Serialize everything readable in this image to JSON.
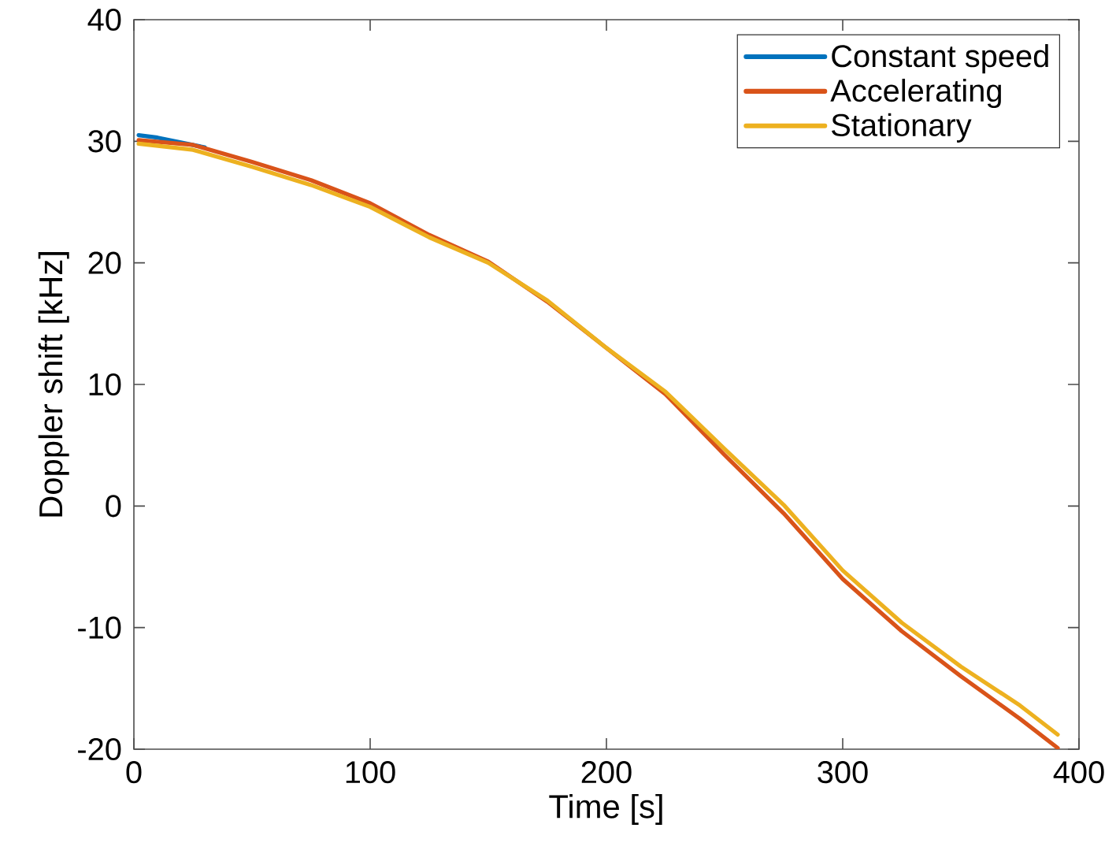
{
  "chart_data": {
    "type": "line",
    "xlabel": "Time [s]",
    "ylabel": "Doppler shift [kHz]",
    "xlim": [
      0,
      400
    ],
    "ylim": [
      -20,
      40
    ],
    "xticks": [
      0,
      100,
      200,
      300,
      400
    ],
    "yticks": [
      -20,
      -10,
      0,
      10,
      20,
      30,
      40
    ],
    "legend": "top right",
    "series": [
      {
        "name": "Constant speed",
        "color": "#0072bd",
        "x": [
          2,
          10,
          20,
          30
        ],
        "values": [
          30.5,
          30.3,
          29.9,
          29.5
        ]
      },
      {
        "name": "Accelerating",
        "color": "#d95319",
        "x": [
          2,
          25,
          50,
          75,
          100,
          125,
          150,
          175,
          200,
          225,
          250,
          275,
          300,
          325,
          350,
          375,
          391
        ],
        "values": [
          30.1,
          29.7,
          28.3,
          26.8,
          24.9,
          22.3,
          20.1,
          16.8,
          13.0,
          9.2,
          4.2,
          -0.6,
          -6.0,
          -10.3,
          -14.0,
          -17.5,
          -19.9
        ]
      },
      {
        "name": "Stationary",
        "color": "#edb120",
        "x": [
          2,
          25,
          50,
          75,
          100,
          125,
          150,
          175,
          200,
          225,
          250,
          275,
          300,
          325,
          350,
          375,
          391
        ],
        "values": [
          29.8,
          29.3,
          27.9,
          26.4,
          24.6,
          22.1,
          20.0,
          16.9,
          13.0,
          9.4,
          4.7,
          0.1,
          -5.3,
          -9.6,
          -13.2,
          -16.4,
          -18.8
        ]
      }
    ]
  }
}
